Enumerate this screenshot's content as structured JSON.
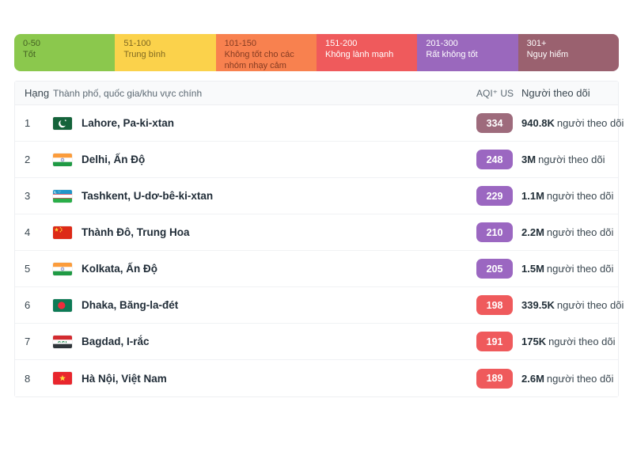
{
  "legend": {
    "segments": [
      {
        "range": "0-50",
        "label": "Tốt",
        "color": "#8bc84d",
        "text": "rgba(20,25,5,0.6)"
      },
      {
        "range": "51-100",
        "label": "Trung bình",
        "color": "#fbd24b",
        "text": "rgba(40,30,5,0.6)"
      },
      {
        "range": "101-150",
        "label": "Không tốt cho các nhóm nhạy cảm",
        "color": "#f8814f",
        "text": "rgba(60,15,5,0.62)"
      },
      {
        "range": "151-200",
        "label": "Không lành mạnh",
        "color": "#ef5a5c",
        "text": "#ffffff"
      },
      {
        "range": "201-300",
        "label": "Rất không tốt",
        "color": "#9a68bd",
        "text": "#ffffff"
      },
      {
        "range": "301+",
        "label": "Nguy hiểm",
        "color": "#9a616f",
        "text": "#ffffff"
      }
    ]
  },
  "table": {
    "headers": {
      "rank": "Hạng",
      "city": "Thành phố, quốc gia/khu vực chính",
      "aqi": "AQI⁺ US",
      "followers": "Người theo dõi"
    },
    "rows": [
      {
        "rank": "1",
        "flag": "pakistan",
        "city": "Lahore, Pa-ki-xtan",
        "aqi": "334",
        "aqi_color": "#9e6b7c",
        "followers_count": "940.8K",
        "followers_label": "người theo dõi"
      },
      {
        "rank": "2",
        "flag": "india",
        "city": "Delhi, Ấn Độ",
        "aqi": "248",
        "aqi_color": "#9b67c1",
        "followers_count": "3M",
        "followers_label": "người theo dõi"
      },
      {
        "rank": "3",
        "flag": "uzbekistan",
        "city": "Tashkent, U-dơ-bê-ki-xtan",
        "aqi": "229",
        "aqi_color": "#9b67c1",
        "followers_count": "1.1M",
        "followers_label": "người theo dõi"
      },
      {
        "rank": "4",
        "flag": "china",
        "city": "Thành Đô, Trung Hoa",
        "aqi": "210",
        "aqi_color": "#9b67c1",
        "followers_count": "2.2M",
        "followers_label": "người theo dõi"
      },
      {
        "rank": "5",
        "flag": "india",
        "city": "Kolkata, Ấn Độ",
        "aqi": "205",
        "aqi_color": "#9b67c1",
        "followers_count": "1.5M",
        "followers_label": "người theo dõi"
      },
      {
        "rank": "6",
        "flag": "bangladesh",
        "city": "Dhaka, Băng-la-đét",
        "aqi": "198",
        "aqi_color": "#ef5a5c",
        "followers_count": "339.5K",
        "followers_label": "người theo dõi"
      },
      {
        "rank": "7",
        "flag": "iraq",
        "city": "Bagdad, I-rắc",
        "aqi": "191",
        "aqi_color": "#ef5a5c",
        "followers_count": "175K",
        "followers_label": "người theo dõi"
      },
      {
        "rank": "8",
        "flag": "vietnam",
        "city": "Hà Nội, Việt Nam",
        "aqi": "189",
        "aqi_color": "#ef5a5c",
        "followers_count": "2.6M",
        "followers_label": "người theo dõi"
      }
    ]
  }
}
